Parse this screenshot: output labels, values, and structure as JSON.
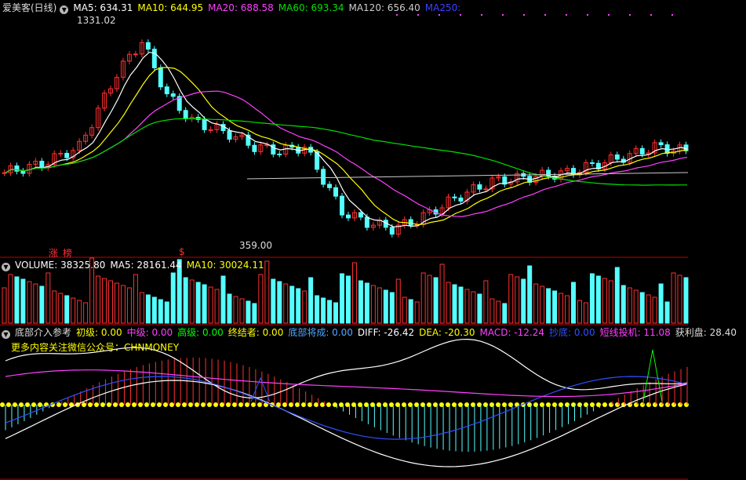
{
  "main": {
    "title": "爱美客(日线)",
    "ma": [
      {
        "label": "MA5: 634.31",
        "color": "#ffffff"
      },
      {
        "label": "MA10: 644.95",
        "color": "#ffff00"
      },
      {
        "label": "MA20: 688.58",
        "color": "#ff40ff"
      },
      {
        "label": "MA60: 693.34",
        "color": "#00e000"
      },
      {
        "label": "MA120: 656.40",
        "color": "#cccccc"
      },
      {
        "label": "MA250:",
        "color": "#4040ff"
      }
    ],
    "high_label": "1331.02",
    "low_label": "359.00",
    "tag1": "涨",
    "tag2": "榜",
    "tag3": "$"
  },
  "volume": {
    "items": [
      {
        "label": "VOLUME: 38325.80",
        "color": "#ffffff"
      },
      {
        "label": "MA5: 28161.44",
        "color": "#ffffff"
      },
      {
        "label": "MA10: 30024.11",
        "color": "#ffff00"
      }
    ]
  },
  "indicator": {
    "title": "底部介入参考",
    "items": [
      {
        "label": "初级: 0.00",
        "color": "#ffff00"
      },
      {
        "label": "中级: 0.00",
        "color": "#ff40ff"
      },
      {
        "label": "高级: 0.00",
        "color": "#00ff00"
      },
      {
        "label": "终结者: 0.00",
        "color": "#ffff00"
      },
      {
        "label": "底部将成: 0.00",
        "color": "#4fa8ff"
      },
      {
        "label": "DIFF: -26.42",
        "color": "#ffffff"
      },
      {
        "label": "DEA: -20.30",
        "color": "#ffff00"
      },
      {
        "label": "MACD: -12.24",
        "color": "#ff40ff"
      },
      {
        "label": "抄底: 0.00",
        "color": "#3050ff"
      },
      {
        "label": "短线投机: 11.08",
        "color": "#ff40ff"
      },
      {
        "label": "获利盘: 28.40",
        "color": "#dddddd"
      }
    ],
    "notice": "更多内容关注微信公众号：CHNMONEY"
  },
  "colors": {
    "up": "#ff3030",
    "down": "#54ffff",
    "axis": "#c00000"
  }
}
